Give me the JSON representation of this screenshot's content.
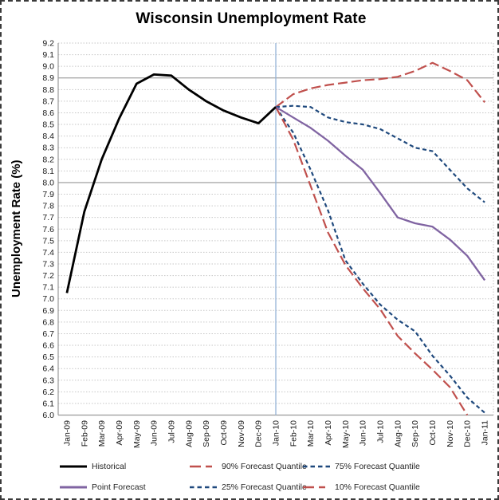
{
  "title": "Wisconsin Unemployment Rate",
  "y_axis": {
    "title": "Unemployment Rate (%)",
    "tick_format_decimals": 1
  },
  "colors": {
    "background": "#ffffff",
    "grid_minor": "#c6c6c6",
    "grid_emphasis": "#aaaaaa",
    "axis": "#9a9a9a",
    "tick_text": "#1a1a1a",
    "divider_line": "#95B3D7"
  },
  "chart_data": {
    "type": "line",
    "title": "Wisconsin Unemployment Rate",
    "xlabel": "",
    "ylabel": "Unemployment Rate (%)",
    "ylim": [
      6.0,
      9.2
    ],
    "ytick_step": 0.1,
    "grid": true,
    "emphasized_gridlines": [
      8.9,
      8.0
    ],
    "divider": {
      "at_category": "Jan-10",
      "color": "#95B3D7"
    },
    "legend_position": "bottom",
    "categories": [
      "Jan-09",
      "Feb-09",
      "Mar-09",
      "Apr-09",
      "May-09",
      "Jun-09",
      "Jul-09",
      "Aug-09",
      "Sep-09",
      "Oct-09",
      "Nov-09",
      "Dec-09",
      "Jan-10",
      "Feb-10",
      "Mar-10",
      "Apr-10",
      "May-10",
      "Jun-10",
      "Jul-10",
      "Aug-10",
      "Sep-10",
      "Oct-10",
      "Nov-10",
      "Dec-10",
      "Jan-11"
    ],
    "series": [
      {
        "name": "Historical",
        "color": "#000000",
        "dash": null,
        "width": 2.8,
        "values": [
          7.05,
          7.75,
          8.2,
          8.55,
          8.85,
          8.93,
          8.92,
          8.8,
          8.7,
          8.62,
          8.56,
          8.51,
          8.65,
          null,
          null,
          null,
          null,
          null,
          null,
          null,
          null,
          null,
          null,
          null,
          null
        ]
      },
      {
        "name": "Point Forecast",
        "color": "#8064A2",
        "dash": null,
        "width": 2.3,
        "values": [
          null,
          null,
          null,
          null,
          null,
          null,
          null,
          null,
          null,
          null,
          null,
          null,
          8.65,
          8.56,
          8.47,
          8.36,
          8.23,
          8.11,
          7.91,
          7.7,
          7.65,
          7.62,
          7.51,
          7.37,
          7.16
        ]
      },
      {
        "name": "90% Forecast Quantile",
        "color": "#C0504D",
        "dash": "12 5",
        "width": 2.2,
        "values": [
          null,
          null,
          null,
          null,
          null,
          null,
          null,
          null,
          null,
          null,
          null,
          null,
          8.65,
          8.76,
          8.81,
          8.84,
          8.86,
          8.88,
          8.89,
          8.91,
          8.96,
          9.03,
          8.96,
          8.88,
          8.69
        ]
      },
      {
        "name": "75% Forecast Quantile",
        "color": "#1F497D",
        "dash": "5 3.5",
        "width": 2.2,
        "values": [
          null,
          null,
          null,
          null,
          null,
          null,
          null,
          null,
          null,
          null,
          null,
          null,
          8.65,
          8.66,
          8.65,
          8.56,
          8.52,
          8.5,
          8.46,
          8.38,
          8.3,
          8.27,
          8.11,
          7.95,
          7.83
        ]
      },
      {
        "name": "25% Forecast Quantile",
        "color": "#1F497D",
        "dash": "5 3.5",
        "width": 2.2,
        "values": [
          null,
          null,
          null,
          null,
          null,
          null,
          null,
          null,
          null,
          null,
          null,
          null,
          8.65,
          8.43,
          8.11,
          7.76,
          7.33,
          7.13,
          6.95,
          6.82,
          6.72,
          6.51,
          6.34,
          6.15,
          6.02
        ]
      },
      {
        "name": "10% Forecast Quantile",
        "color": "#C0504D",
        "dash": "12 5",
        "width": 2.2,
        "values": [
          null,
          null,
          null,
          null,
          null,
          null,
          null,
          null,
          null,
          null,
          null,
          null,
          8.65,
          8.37,
          7.97,
          7.57,
          7.29,
          7.09,
          6.91,
          6.68,
          6.53,
          6.39,
          6.24,
          6.0,
          null
        ]
      }
    ]
  },
  "legend": {
    "rows": [
      [
        {
          "label": "Historical",
          "series": 0
        },
        {
          "label": "90% Forecast Quantile",
          "series": 2
        },
        {
          "label": "75% Forecast Quantile",
          "series": 3
        }
      ],
      [
        {
          "label": "Point Forecast",
          "series": 1
        },
        {
          "label": "25% Forecast Quantile",
          "series": 4
        },
        {
          "label": "10% Forecast Quantile",
          "series": 5
        }
      ]
    ]
  }
}
